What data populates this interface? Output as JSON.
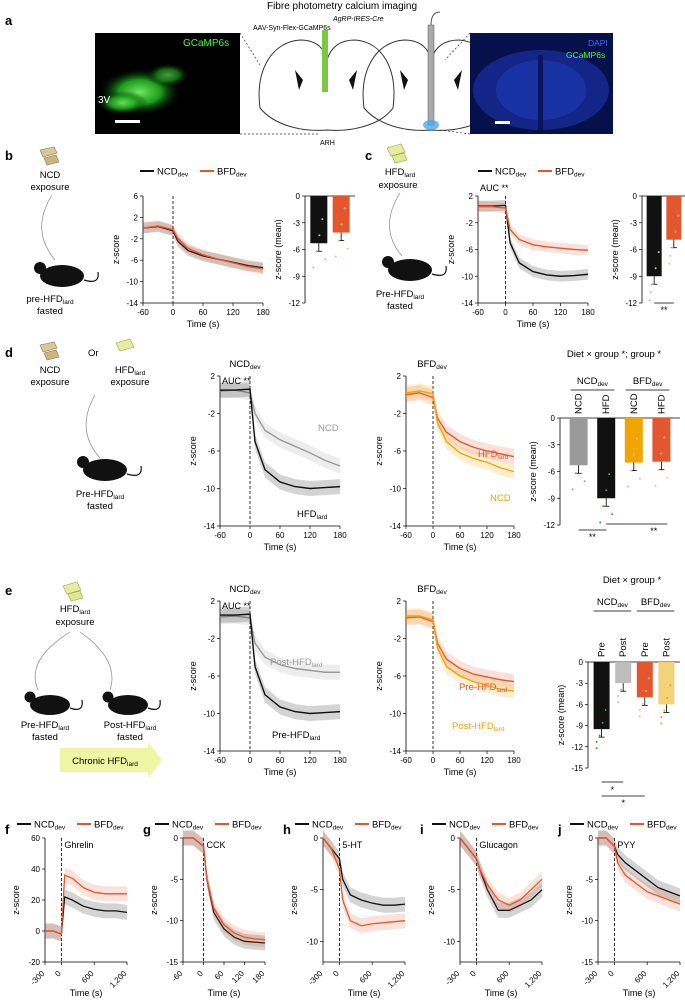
{
  "title": "Fibre photometry calcium imaging",
  "panel_a": {
    "label": "a",
    "micrograph_left": {
      "label": "GCaMP6s",
      "region": "3V"
    },
    "schematic": {
      "virus": "AAV-Syn-Flex-GCaMP6s",
      "mouse": "AgRP-IRES-Cre",
      "region": "ARH"
    },
    "micrograph_right": {
      "label1": "DAPI",
      "label2": "GCaMP6s"
    }
  },
  "colors": {
    "ncd": "#111111",
    "bfd": "#e4572e",
    "bfd_light": "#f0a500",
    "grey": "#9a9a9a",
    "pale": "#f4d27a",
    "arrow": "#eef5a3"
  },
  "legend": {
    "ncd": "NCD",
    "bfd": "BFD",
    "sub": "dev"
  },
  "panel_b": {
    "label": "b",
    "food": "NCD",
    "food2": "exposure",
    "mouse1": "pre-HFD",
    "mouse1_sub": "lard",
    "mouse2": "fasted",
    "ylabel": "z-score",
    "xlabel": "Time (s)",
    "bar_ylabel": "z-score (mean)",
    "yticks": [
      "2",
      "-2",
      "-6",
      "-10",
      "-14"
    ],
    "ytop": "6",
    "xticks": [
      "-60",
      "0",
      "60",
      "120",
      "180"
    ],
    "bar_yticks": [
      "0",
      "-3",
      "-6",
      "-9",
      "-12"
    ]
  },
  "panel_c": {
    "label": "c",
    "food": "HFD",
    "food_sub": "lard",
    "food2": "exposure",
    "mouse1": "Pre-HFD",
    "mouse1_sub": "lard",
    "mouse2": "fasted",
    "auc": "AUC **",
    "sig": "**",
    "ylabel": "z-score",
    "xlabel": "Time (s)",
    "bar_ylabel": "z-score (mean)",
    "yticks": [
      "2",
      "-2",
      "-6",
      "-10",
      "-14"
    ],
    "xticks": [
      "-60",
      "0",
      "60",
      "120",
      "180"
    ],
    "bar_yticks": [
      "0",
      "-3",
      "-6",
      "-9",
      "-12"
    ]
  },
  "panel_d": {
    "label": "d",
    "food_a": "NCD",
    "food_a2": "exposure",
    "or": "Or",
    "food_b": "HFD",
    "food_b_sub": "lard",
    "food_b2": "exposure",
    "mouse1": "Pre-HFD",
    "mouse1_sub": "lard",
    "mouse2": "fasted",
    "title_left": "NCD",
    "title_right": "BFD",
    "title_sub": "dev",
    "auc": "AUC **",
    "lab_ncd": "NCD",
    "lab_hfd": "HFD",
    "lab_hfd_sub": "lard",
    "lab_hfd2": "HFD",
    "lab_ncd2": "NCD",
    "stats": "Diet × group *; group *",
    "bar_groups": [
      "NCD",
      "BFD"
    ],
    "bar_cats": [
      "NCD",
      "HFD",
      "NCD",
      "HFD"
    ],
    "sig1": "**",
    "sig2": "**",
    "ylabel": "z-score",
    "xlabel": "Time (s)",
    "bar_ylabel": "z-score (mean)",
    "yticks": [
      "2",
      "-2",
      "-6",
      "-10",
      "-14"
    ],
    "xticks": [
      "-60",
      "0",
      "60",
      "120",
      "180"
    ],
    "bar_yticks": [
      "0",
      "-3",
      "-6",
      "-9",
      "-12"
    ]
  },
  "panel_e": {
    "label": "e",
    "food": "HFD",
    "food_sub": "lard",
    "food2": "exposure",
    "mouse1": "Pre-HFD",
    "mouse1_sub": "lard",
    "mouse1b": "fasted",
    "mouse2": "Post-HFD",
    "mouse2_sub": "lard",
    "mouse2b": "fasted",
    "arrow": "Chronic HFD",
    "arrow_sub": "lard",
    "title_left": "NCD",
    "title_right": "BFD",
    "title_sub": "dev",
    "auc": "AUC **",
    "lab_post": "Post-HFD",
    "lab_pre": "Pre-HFD",
    "lab_sub": "lard",
    "stats": "Diet × group *",
    "bar_groups": [
      "NCD",
      "BFD"
    ],
    "bar_cats": [
      "Pre",
      "Post",
      "Pre",
      "Post"
    ],
    "sig1": "*",
    "sig2": "*",
    "ylabel": "z-score",
    "xlabel": "Time (s)",
    "bar_ylabel": "z-score (mean)",
    "yticks": [
      "2",
      "-2",
      "-6",
      "-10",
      "-14"
    ],
    "xticks": [
      "-60",
      "0",
      "60",
      "120",
      "180"
    ],
    "bar_yticks": [
      "0",
      "-3",
      "-6",
      "-9",
      "-12",
      "-15"
    ]
  },
  "bottom": [
    {
      "label": "f",
      "name": "Ghrelin",
      "yticks": [
        "60",
        "40",
        "20",
        "0",
        "-20"
      ],
      "xticks": [
        "-300",
        "0",
        "600",
        "1,200"
      ]
    },
    {
      "label": "g",
      "name": "CCK",
      "yticks": [
        "0",
        "-5",
        "-10",
        "-15"
      ],
      "xticks": [
        "-60",
        "0",
        "60",
        "120",
        "180"
      ]
    },
    {
      "label": "h",
      "name": "5-HT",
      "yticks": [
        "0",
        "-5",
        "-10"
      ],
      "xticks": [
        "-300",
        "0",
        "600",
        "1,200"
      ]
    },
    {
      "label": "i",
      "name": "Glucagon",
      "yticks": [
        "0",
        "-5",
        "-10"
      ],
      "xticks": [
        "-300",
        "0",
        "600",
        "1,200"
      ]
    },
    {
      "label": "j",
      "name": "PYY",
      "yticks": [
        "0",
        "-5",
        "-10",
        "-15"
      ],
      "xticks": [
        "-300",
        "0",
        "600",
        "1,200"
      ]
    }
  ],
  "bottom_ylabel": "z-score",
  "bottom_xlabel": "Time (s)",
  "chart_data": [
    {
      "type": "line",
      "panel": "b",
      "x": [
        -60,
        -30,
        0,
        10,
        30,
        60,
        90,
        120,
        150,
        180
      ],
      "series": [
        {
          "name": "NCD",
          "values": [
            0,
            0.3,
            -0.5,
            -2.5,
            -4.2,
            -5.2,
            -5.8,
            -6.4,
            -7.0,
            -7.4
          ]
        },
        {
          "name": "BFD",
          "values": [
            0,
            0.4,
            -0.3,
            -2.0,
            -3.8,
            -5.0,
            -5.8,
            -6.5,
            -7.2,
            -7.6
          ]
        }
      ],
      "ylim": [
        -14,
        6
      ]
    },
    {
      "type": "bar",
      "panel": "b",
      "categories": [
        "NCD",
        "BFD"
      ],
      "values": [
        -5.3,
        -4.1
      ],
      "ylim": [
        -12,
        0
      ]
    },
    {
      "type": "line",
      "panel": "c",
      "x": [
        -60,
        -30,
        0,
        10,
        30,
        60,
        90,
        120,
        150,
        180
      ],
      "series": [
        {
          "name": "NCD",
          "values": [
            0.5,
            0.5,
            0.6,
            -5.0,
            -8.0,
            -9.3,
            -9.8,
            -10.0,
            -9.9,
            -9.7
          ]
        },
        {
          "name": "BFD",
          "values": [
            0.4,
            0.4,
            0.2,
            -3.0,
            -4.5,
            -5.3,
            -5.6,
            -5.8,
            -6.0,
            -6.1
          ]
        }
      ],
      "ylim": [
        -14,
        2
      ]
    },
    {
      "type": "bar",
      "panel": "c",
      "categories": [
        "NCD",
        "BFD"
      ],
      "values": [
        -9.0,
        -4.9
      ],
      "ylim": [
        -12,
        0
      ]
    },
    {
      "type": "line",
      "panel": "d-NCD",
      "x": [
        -60,
        -30,
        0,
        10,
        30,
        60,
        90,
        120,
        150,
        180
      ],
      "series": [
        {
          "name": "NCD",
          "values": [
            0.4,
            0.5,
            0.2,
            -2.0,
            -3.8,
            -4.8,
            -5.5,
            -6.2,
            -7.0,
            -7.6
          ]
        },
        {
          "name": "HFD",
          "values": [
            0.5,
            0.5,
            0.6,
            -5.0,
            -8.0,
            -9.3,
            -9.8,
            -10.0,
            -9.9,
            -9.8
          ]
        }
      ],
      "ylim": [
        -14,
        2
      ]
    },
    {
      "type": "line",
      "panel": "d-BFD",
      "x": [
        -60,
        -30,
        0,
        10,
        30,
        60,
        90,
        120,
        150,
        180
      ],
      "series": [
        {
          "name": "HFD",
          "values": [
            0,
            0.2,
            -0.3,
            -2.5,
            -4.0,
            -5.0,
            -5.6,
            -6.0,
            -6.3,
            -6.6
          ]
        },
        {
          "name": "NCD",
          "values": [
            0.2,
            0.4,
            0.1,
            -3.0,
            -5.0,
            -6.2,
            -6.8,
            -7.2,
            -7.8,
            -8.2
          ]
        }
      ],
      "ylim": [
        -14,
        2
      ]
    },
    {
      "type": "bar",
      "panel": "d",
      "categories": [
        "NCD-NCD",
        "NCD-HFD",
        "BFD-NCD",
        "BFD-HFD"
      ],
      "values": [
        -5.3,
        -9.0,
        -5.0,
        -4.9
      ],
      "ylim": [
        -12,
        0
      ]
    },
    {
      "type": "line",
      "panel": "e-NCD",
      "x": [
        -60,
        -30,
        0,
        10,
        30,
        60,
        90,
        120,
        150,
        180
      ],
      "series": [
        {
          "name": "Post-HFD",
          "values": [
            0.3,
            0.4,
            0.2,
            -2.5,
            -4.0,
            -4.8,
            -5.2,
            -5.4,
            -5.6,
            -5.6
          ]
        },
        {
          "name": "Pre-HFD",
          "values": [
            0.5,
            0.5,
            0.6,
            -5.0,
            -8.0,
            -9.3,
            -9.8,
            -10.0,
            -9.9,
            -9.8
          ]
        }
      ],
      "ylim": [
        -14,
        2
      ]
    },
    {
      "type": "line",
      "panel": "e-BFD",
      "x": [
        -60,
        -30,
        0,
        10,
        30,
        60,
        90,
        120,
        150,
        180
      ],
      "series": [
        {
          "name": "Pre-HFD",
          "values": [
            0.2,
            0.3,
            -0.2,
            -2.5,
            -4.2,
            -5.2,
            -5.8,
            -6.1,
            -6.4,
            -6.6
          ]
        },
        {
          "name": "Post-HFD",
          "values": [
            0.4,
            0.4,
            0.0,
            -3.0,
            -5.0,
            -6.0,
            -6.6,
            -7.0,
            -7.4,
            -7.6
          ]
        }
      ],
      "ylim": [
        -14,
        2
      ]
    },
    {
      "type": "bar",
      "panel": "e",
      "categories": [
        "NCD-Pre",
        "NCD-Post",
        "BFD-Pre",
        "BFD-Post"
      ],
      "values": [
        -9.5,
        -3.0,
        -5.0,
        -6.0
      ],
      "ylim": [
        -15,
        0
      ]
    },
    {
      "type": "line",
      "panel": "f",
      "x": [
        -300,
        -150,
        0,
        60,
        200,
        400,
        600,
        800,
        1000,
        1200
      ],
      "series": [
        {
          "name": "NCD",
          "values": [
            0,
            0,
            -2,
            22,
            20,
            16,
            14,
            13,
            13,
            12
          ]
        },
        {
          "name": "BFD",
          "values": [
            0,
            0,
            -2,
            36,
            34,
            28,
            25,
            24,
            24,
            24
          ]
        }
      ],
      "ylim": [
        -20,
        60
      ]
    },
    {
      "type": "line",
      "panel": "g",
      "x": [
        -60,
        -30,
        0,
        10,
        30,
        60,
        90,
        120,
        150,
        180
      ],
      "series": [
        {
          "name": "NCD",
          "values": [
            0,
            0,
            -1,
            -5,
            -9,
            -11,
            -12,
            -12.5,
            -12.6,
            -12.7
          ]
        },
        {
          "name": "BFD",
          "values": [
            0,
            0,
            -1,
            -5,
            -8.5,
            -10.5,
            -11.5,
            -12,
            -12.2,
            -12.3
          ]
        }
      ],
      "ylim": [
        -15,
        0
      ]
    },
    {
      "type": "line",
      "panel": "h",
      "x": [
        -300,
        -150,
        0,
        60,
        200,
        400,
        600,
        800,
        1000,
        1200
      ],
      "series": [
        {
          "name": "NCD",
          "values": [
            0,
            -1,
            -2,
            -4,
            -5.5,
            -6,
            -6.3,
            -6.5,
            -6.5,
            -6.4
          ]
        },
        {
          "name": "BFD",
          "values": [
            0,
            -1,
            -3,
            -6,
            -8,
            -8.5,
            -8.3,
            -8.2,
            -8.1,
            -8
          ]
        }
      ],
      "ylim": [
        -12,
        0
      ]
    },
    {
      "type": "line",
      "panel": "i",
      "x": [
        -300,
        -150,
        0,
        60,
        200,
        400,
        600,
        800,
        1000,
        1200
      ],
      "series": [
        {
          "name": "NCD",
          "values": [
            0,
            -1,
            -2,
            -3,
            -5,
            -7,
            -7,
            -6.5,
            -6,
            -5
          ]
        },
        {
          "name": "BFD",
          "values": [
            0,
            -1,
            -2,
            -3,
            -4.5,
            -6,
            -6.5,
            -6,
            -5,
            -4
          ]
        }
      ],
      "ylim": [
        -12,
        0
      ]
    },
    {
      "type": "line",
      "panel": "j",
      "x": [
        -300,
        -150,
        0,
        60,
        200,
        400,
        600,
        800,
        1000,
        1200
      ],
      "series": [
        {
          "name": "NCD",
          "values": [
            0,
            0,
            -1,
            -2,
            -3,
            -4,
            -5,
            -6,
            -6.5,
            -7
          ]
        },
        {
          "name": "BFD",
          "values": [
            0,
            0,
            -1,
            -3,
            -4.5,
            -5.5,
            -6.5,
            -7,
            -7.5,
            -8
          ]
        }
      ],
      "ylim": [
        -15,
        0
      ]
    }
  ]
}
